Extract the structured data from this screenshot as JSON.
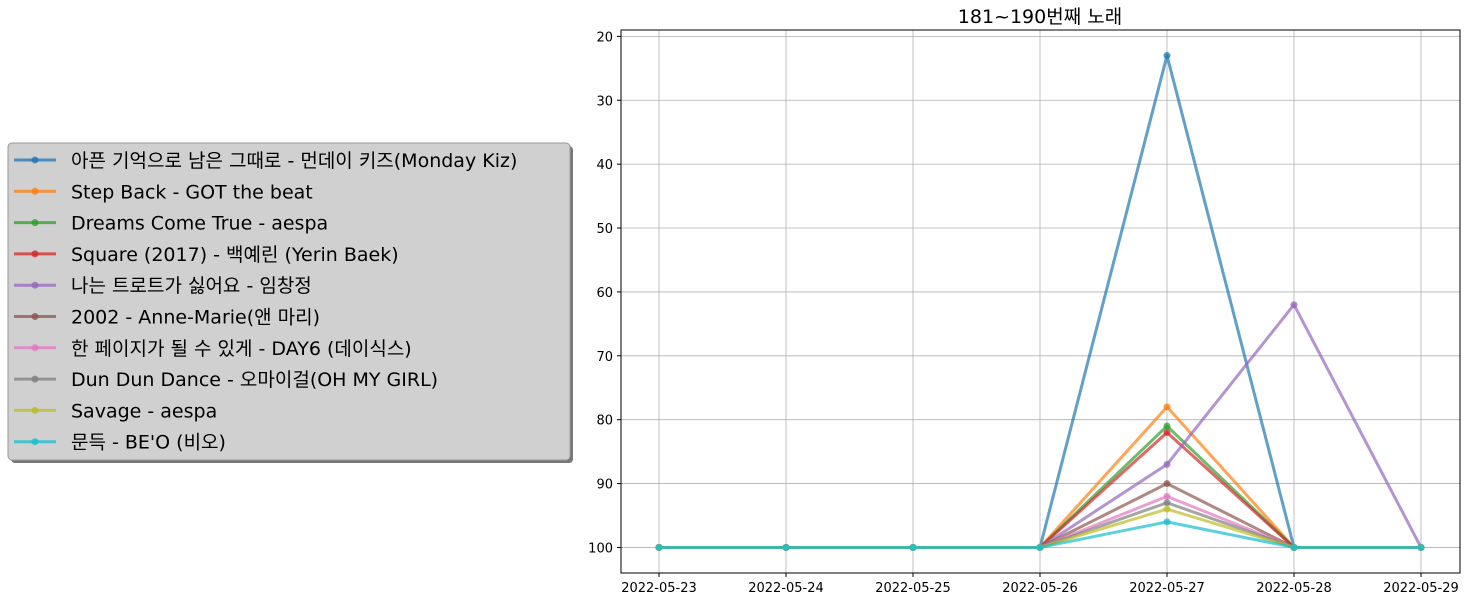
{
  "chart_data": {
    "type": "line",
    "title": "181~190번째 노래",
    "xlabel": "",
    "ylabel": "",
    "x": [
      "2022-05-23",
      "2022-05-24",
      "2022-05-25",
      "2022-05-26",
      "2022-05-27",
      "2022-05-28",
      "2022-05-29"
    ],
    "ylim": [
      104,
      19
    ],
    "yticks": [
      20,
      30,
      40,
      50,
      60,
      70,
      80,
      90,
      100
    ],
    "y_inverted": true,
    "grid": true,
    "legend_position": "left",
    "series": [
      {
        "name": "아픈 기억으로 남은 그때로 - 먼데이 키즈(Monday Kiz)",
        "color": "#1f77b4",
        "values": [
          100,
          100,
          100,
          100,
          23,
          100,
          100
        ]
      },
      {
        "name": "Step Back - GOT the beat",
        "color": "#ff7f0e",
        "values": [
          100,
          100,
          100,
          100,
          78,
          100,
          100
        ]
      },
      {
        "name": "Dreams Come True - aespa",
        "color": "#2ca02c",
        "values": [
          100,
          100,
          100,
          100,
          81,
          100,
          100
        ]
      },
      {
        "name": "Square (2017) - 백예린 (Yerin Baek)",
        "color": "#d62728",
        "values": [
          100,
          100,
          100,
          100,
          82,
          100,
          100
        ]
      },
      {
        "name": "나는 트로트가 싫어요 - 임창정",
        "color": "#9467bd",
        "values": [
          100,
          100,
          100,
          100,
          87,
          62,
          100
        ]
      },
      {
        "name": "2002 - Anne-Marie(앤 마리)",
        "color": "#8c564b",
        "values": [
          100,
          100,
          100,
          100,
          90,
          100,
          100
        ]
      },
      {
        "name": "한 페이지가 될 수 있게 - DAY6 (데이식스)",
        "color": "#e377c2",
        "values": [
          100,
          100,
          100,
          100,
          92,
          100,
          100
        ]
      },
      {
        "name": "Dun Dun Dance - 오마이걸(OH MY GIRL)",
        "color": "#7f7f7f",
        "values": [
          100,
          100,
          100,
          100,
          93,
          100,
          100
        ]
      },
      {
        "name": "Savage - aespa",
        "color": "#bcbd22",
        "values": [
          100,
          100,
          100,
          100,
          94,
          100,
          100
        ]
      },
      {
        "name": "문득 - BE'O (비오)",
        "color": "#17becf",
        "values": [
          100,
          100,
          100,
          100,
          96,
          100,
          100
        ]
      }
    ]
  }
}
